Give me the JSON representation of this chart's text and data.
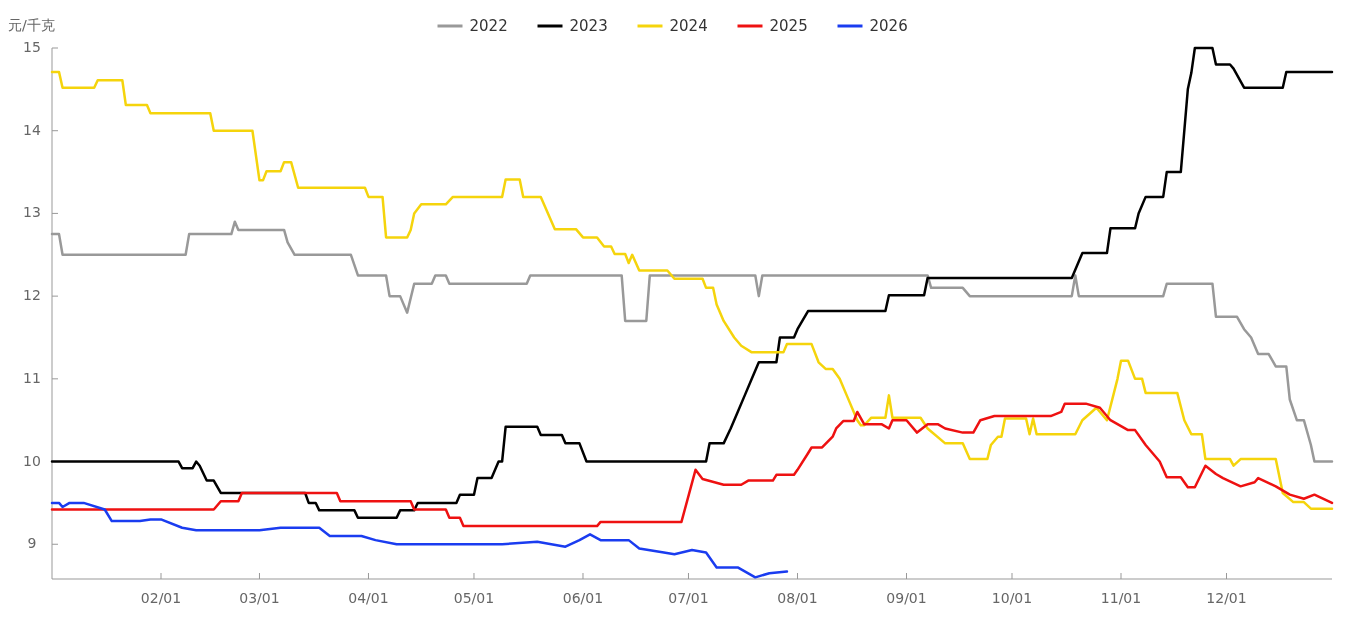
{
  "chart_data": {
    "type": "line",
    "ylabel": "元/千克",
    "legend": "top",
    "grid": false,
    "marker": "none",
    "line_style": "solid",
    "xlim": [
      "--01-01",
      "--12-31"
    ],
    "xticks": [
      {
        "value": "--02-01",
        "label": "02/01"
      },
      {
        "value": "--03-01",
        "label": "03/01"
      },
      {
        "value": "--04-01",
        "label": "04/01"
      },
      {
        "value": "--05-01",
        "label": "05/01"
      },
      {
        "value": "--06-01",
        "label": "06/01"
      },
      {
        "value": "--07-01",
        "label": "07/01"
      },
      {
        "value": "--08-01",
        "label": "08/01"
      },
      {
        "value": "--09-01",
        "label": "09/01"
      },
      {
        "value": "--10-01",
        "label": "10/01"
      },
      {
        "value": "--11-01",
        "label": "11/01"
      },
      {
        "value": "--12-01",
        "label": "12/01"
      }
    ],
    "ylim": [
      8.58,
      15
    ],
    "yticks": [
      9,
      10,
      11,
      12,
      13,
      14,
      15
    ],
    "series": [
      {
        "name": "2022",
        "color": "#999999",
        "x": [
          "--01-01",
          "--01-03",
          "--01-04",
          "--02-08",
          "--02-09",
          "--02-21",
          "--02-22",
          "--02-23",
          "--03-08",
          "--03-09",
          "--03-11",
          "--03-27",
          "--03-29",
          "--04-06",
          "--04-07",
          "--04-10",
          "--04-12",
          "--04-14",
          "--04-19",
          "--04-20",
          "--04-23",
          "--04-24",
          "--05-16",
          "--05-17",
          "--06-12",
          "--06-13",
          "--06-19",
          "--06-20",
          "--07-20",
          "--07-21",
          "--07-22",
          "--09-07",
          "--09-08",
          "--09-17",
          "--09-19",
          "--10-18",
          "--10-19",
          "--10-20",
          "--11-13",
          "--11-14",
          "--11-27",
          "--11-28",
          "--12-04",
          "--12-06",
          "--12-08",
          "--12-10",
          "--12-13",
          "--12-15",
          "--12-18",
          "--12-19",
          "--12-21",
          "--12-23",
          "--12-25",
          "--12-26",
          "--12-31"
        ],
        "values": [
          12.75,
          12.75,
          12.5,
          12.5,
          12.75,
          12.75,
          12.9,
          12.8,
          12.8,
          12.65,
          12.5,
          12.5,
          12.25,
          12.25,
          12.0,
          12.0,
          11.8,
          12.15,
          12.15,
          12.25,
          12.25,
          12.15,
          12.15,
          12.25,
          12.25,
          11.7,
          11.7,
          12.25,
          12.25,
          12.0,
          12.25,
          12.25,
          12.1,
          12.1,
          12.0,
          12.0,
          12.25,
          12.0,
          12.0,
          12.15,
          12.15,
          11.75,
          11.75,
          11.6,
          11.5,
          11.3,
          11.3,
          11.15,
          11.15,
          10.75,
          10.5,
          10.5,
          10.2,
          10.0,
          10.0
        ]
      },
      {
        "name": "2023",
        "color": "#000000",
        "x": [
          "--01-01",
          "--02-06",
          "--02-07",
          "--02-10",
          "--02-11",
          "--02-12",
          "--02-14",
          "--02-16",
          "--02-18",
          "--03-14",
          "--03-15",
          "--03-17",
          "--03-18",
          "--03-28",
          "--03-29",
          "--04-09",
          "--04-10",
          "--04-14",
          "--04-15",
          "--04-26",
          "--04-27",
          "--05-01",
          "--05-02",
          "--05-06",
          "--05-08",
          "--05-09",
          "--05-10",
          "--05-19",
          "--05-20",
          "--05-26",
          "--05-27",
          "--05-31",
          "--06-02",
          "--07-06",
          "--07-07",
          "--07-11",
          "--07-13",
          "--07-15",
          "--07-17",
          "--07-19",
          "--07-21",
          "--07-26",
          "--07-27",
          "--07-31",
          "--08-01",
          "--08-04",
          "--08-26",
          "--08-27",
          "--09-06",
          "--09-07",
          "--10-18",
          "--10-21",
          "--10-28",
          "--10-29",
          "--11-05",
          "--11-06",
          "--11-08",
          "--11-13",
          "--11-14",
          "--11-18",
          "--11-20",
          "--11-21",
          "--11-22",
          "--11-27",
          "--11-28",
          "--12-02",
          "--12-03",
          "--12-06",
          "--12-17",
          "--12-18",
          "--12-31"
        ],
        "values": [
          10.0,
          10.0,
          9.92,
          9.92,
          10.0,
          9.95,
          9.77,
          9.77,
          9.62,
          9.62,
          9.5,
          9.5,
          9.41,
          9.41,
          9.32,
          9.32,
          9.41,
          9.41,
          9.5,
          9.5,
          9.6,
          9.6,
          9.8,
          9.8,
          10.0,
          10.0,
          10.42,
          10.42,
          10.32,
          10.32,
          10.22,
          10.22,
          10.0,
          10.0,
          10.22,
          10.22,
          10.4,
          10.6,
          10.8,
          11.0,
          11.2,
          11.2,
          11.5,
          11.5,
          11.6,
          11.82,
          11.82,
          12.01,
          12.01,
          12.22,
          12.22,
          12.52,
          12.52,
          12.82,
          12.82,
          13.0,
          13.2,
          13.2,
          13.5,
          13.5,
          14.5,
          14.7,
          15.0,
          15.0,
          14.8,
          14.8,
          14.75,
          14.52,
          14.52,
          14.71,
          14.71
        ]
      },
      {
        "name": "2024",
        "color": "#f5d40c",
        "x": [
          "--01-01",
          "--01-03",
          "--01-04",
          "--01-13",
          "--01-14",
          "--01-21",
          "--01-22",
          "--01-28",
          "--01-29",
          "--02-15",
          "--02-16",
          "--02-27",
          "--03-01",
          "--03-02",
          "--03-03",
          "--03-07",
          "--03-08",
          "--03-10",
          "--03-12",
          "--03-31",
          "--04-01",
          "--04-05",
          "--04-06",
          "--04-12",
          "--04-13",
          "--04-14",
          "--04-16",
          "--04-23",
          "--04-25",
          "--05-09",
          "--05-10",
          "--05-14",
          "--05-15",
          "--05-20",
          "--05-24",
          "--05-30",
          "--06-01",
          "--06-05",
          "--06-07",
          "--06-09",
          "--06-10",
          "--06-13",
          "--06-14",
          "--06-15",
          "--06-17",
          "--06-25",
          "--06-27",
          "--07-05",
          "--07-06",
          "--07-08",
          "--07-09",
          "--07-11",
          "--07-14",
          "--07-16",
          "--07-19",
          "--07-28",
          "--07-29",
          "--08-05",
          "--08-07",
          "--08-09",
          "--08-11",
          "--08-13",
          "--08-15",
          "--08-18",
          "--08-19",
          "--08-20",
          "--08-22",
          "--08-26",
          "--08-27",
          "--08-28",
          "--09-05",
          "--09-07",
          "--09-12",
          "--09-17",
          "--09-19",
          "--09-24",
          "--09-25",
          "--09-27",
          "--09-28",
          "--09-29",
          "--10-05",
          "--10-06",
          "--10-07",
          "--10-08",
          "--10-19",
          "--10-21",
          "--10-25",
          "--10-28",
          "--10-31",
          "--11-01",
          "--11-03",
          "--11-05",
          "--11-07",
          "--11-08",
          "--11-17",
          "--11-19",
          "--11-21",
          "--11-24",
          "--11-25",
          "--12-02",
          "--12-03",
          "--12-05",
          "--12-15",
          "--12-17",
          "--12-20",
          "--12-23",
          "--12-25",
          "--12-31"
        ],
        "values": [
          14.71,
          14.71,
          14.52,
          14.52,
          14.61,
          14.61,
          14.31,
          14.31,
          14.21,
          14.21,
          14.0,
          14.0,
          13.4,
          13.4,
          13.51,
          13.51,
          13.62,
          13.62,
          13.31,
          13.31,
          13.2,
          13.2,
          12.71,
          12.71,
          12.8,
          13.0,
          13.11,
          13.11,
          13.2,
          13.2,
          13.41,
          13.41,
          13.2,
          13.2,
          12.81,
          12.81,
          12.71,
          12.71,
          12.6,
          12.6,
          12.51,
          12.51,
          12.4,
          12.5,
          12.31,
          12.31,
          12.21,
          12.21,
          12.1,
          12.1,
          11.9,
          11.7,
          11.5,
          11.4,
          11.32,
          11.32,
          11.42,
          11.42,
          11.2,
          11.12,
          11.12,
          11.0,
          10.8,
          10.5,
          10.44,
          10.44,
          10.53,
          10.53,
          10.8,
          10.53,
          10.53,
          10.4,
          10.22,
          10.22,
          10.03,
          10.03,
          10.2,
          10.3,
          10.3,
          10.52,
          10.52,
          10.33,
          10.52,
          10.33,
          10.33,
          10.5,
          10.65,
          10.5,
          11.0,
          11.22,
          11.22,
          11.0,
          11.0,
          10.83,
          10.83,
          10.5,
          10.33,
          10.33,
          10.03,
          10.03,
          9.95,
          10.03,
          10.03,
          9.62,
          9.51,
          9.51,
          9.43,
          9.43
        ]
      },
      {
        "name": "2025",
        "color": "#ee1111",
        "x": [
          "--01-01",
          "--02-16",
          "--02-18",
          "--02-23",
          "--02-24",
          "--03-23",
          "--03-24",
          "--04-13",
          "--04-14",
          "--04-23",
          "--04-24",
          "--04-27",
          "--04-28",
          "--06-05",
          "--06-06",
          "--06-29",
          "--07-03",
          "--07-05",
          "--07-11",
          "--07-16",
          "--07-18",
          "--07-25",
          "--07-26",
          "--07-31",
          "--08-01",
          "--08-04",
          "--08-05",
          "--08-08",
          "--08-11",
          "--08-12",
          "--08-14",
          "--08-17",
          "--08-18",
          "--08-20",
          "--08-25",
          "--08-27",
          "--08-28",
          "--09-01",
          "--09-04",
          "--09-07",
          "--09-10",
          "--09-12",
          "--09-17",
          "--09-20",
          "--09-22",
          "--09-26",
          "--10-12",
          "--10-15",
          "--10-16",
          "--10-22",
          "--10-26",
          "--10-29",
          "--11-03",
          "--11-05",
          "--11-08",
          "--11-12",
          "--11-14",
          "--11-18",
          "--11-20",
          "--11-22",
          "--11-25",
          "--11-28",
          "--11-30",
          "--12-05",
          "--12-09",
          "--12-10",
          "--12-15",
          "--12-19",
          "--12-23",
          "--12-26",
          "--12-31"
        ],
        "values": [
          9.42,
          9.42,
          9.52,
          9.52,
          9.62,
          9.62,
          9.52,
          9.52,
          9.42,
          9.42,
          9.32,
          9.32,
          9.22,
          9.22,
          9.27,
          9.27,
          9.9,
          9.79,
          9.72,
          9.72,
          9.77,
          9.77,
          9.84,
          9.84,
          9.9,
          10.1,
          10.17,
          10.17,
          10.3,
          10.4,
          10.49,
          10.49,
          10.6,
          10.45,
          10.45,
          10.4,
          10.5,
          10.5,
          10.35,
          10.45,
          10.45,
          10.4,
          10.35,
          10.35,
          10.5,
          10.55,
          10.55,
          10.6,
          10.7,
          10.7,
          10.65,
          10.5,
          10.38,
          10.38,
          10.2,
          10.0,
          9.81,
          9.81,
          9.69,
          9.69,
          9.95,
          9.85,
          9.8,
          9.7,
          9.75,
          9.8,
          9.7,
          9.6,
          9.55,
          9.6,
          9.5
        ]
      },
      {
        "name": "2026",
        "color": "#1a3cf0",
        "x": [
          "--01-01",
          "--01-03",
          "--01-04",
          "--01-06",
          "--01-10",
          "--01-16",
          "--01-18",
          "--01-26",
          "--01-29",
          "--02-01",
          "--02-07",
          "--02-11",
          "--03-01",
          "--03-07",
          "--03-18",
          "--03-21",
          "--03-30",
          "--04-03",
          "--04-09",
          "--04-27",
          "--05-09",
          "--05-19",
          "--05-27",
          "--05-31",
          "--06-03",
          "--06-06",
          "--06-14",
          "--06-17",
          "--06-24",
          "--06-27",
          "--07-02",
          "--07-06",
          "--07-09",
          "--07-15",
          "--07-20",
          "--07-24",
          "--07-29"
        ],
        "values": [
          9.5,
          9.5,
          9.45,
          9.5,
          9.5,
          9.42,
          9.28,
          9.28,
          9.3,
          9.3,
          9.2,
          9.17,
          9.17,
          9.2,
          9.2,
          9.1,
          9.1,
          9.05,
          9.0,
          9.0,
          9.0,
          9.03,
          8.97,
          9.05,
          9.12,
          9.05,
          9.05,
          8.95,
          8.9,
          8.88,
          8.93,
          8.9,
          8.72,
          8.72,
          8.6,
          8.65,
          8.67
        ]
      }
    ]
  }
}
